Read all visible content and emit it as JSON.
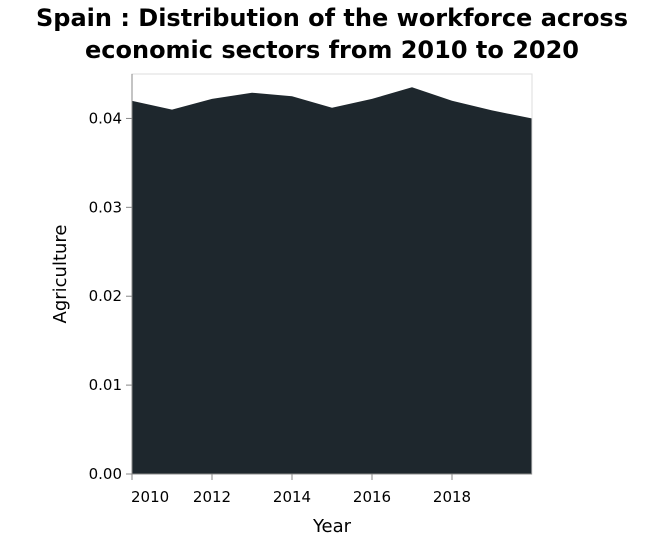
{
  "chart_data": {
    "type": "area",
    "title_lines": [
      "Spain : Distribution of the workforce across",
      "economic sectors from 2010 to 2020"
    ],
    "xlabel": "Year",
    "ylabel": "Agriculture",
    "x": [
      2009.99,
      2011,
      2012,
      2013,
      2014,
      2015,
      2016,
      2017,
      2018,
      2019,
      2019.99
    ],
    "y": [
      0.042,
      0.041,
      0.0422,
      0.0429,
      0.0425,
      0.0412,
      0.0422,
      0.0435,
      0.042,
      0.0409,
      0.04
    ],
    "xlim": [
      2010,
      2020
    ],
    "ylim": [
      0,
      0.045
    ],
    "x_ticks": [
      2010,
      2012,
      2014,
      2016,
      2018
    ],
    "x_tick_labels": [
      "2010",
      "2012",
      "2014",
      "2016",
      "2018"
    ],
    "y_ticks": [
      0,
      0.01,
      0.02,
      0.03,
      0.04
    ],
    "y_tick_labels": [
      "0.00",
      "0.01",
      "0.02",
      "0.03",
      "0.04"
    ],
    "fill_color": "#1e272d",
    "grid": false
  }
}
